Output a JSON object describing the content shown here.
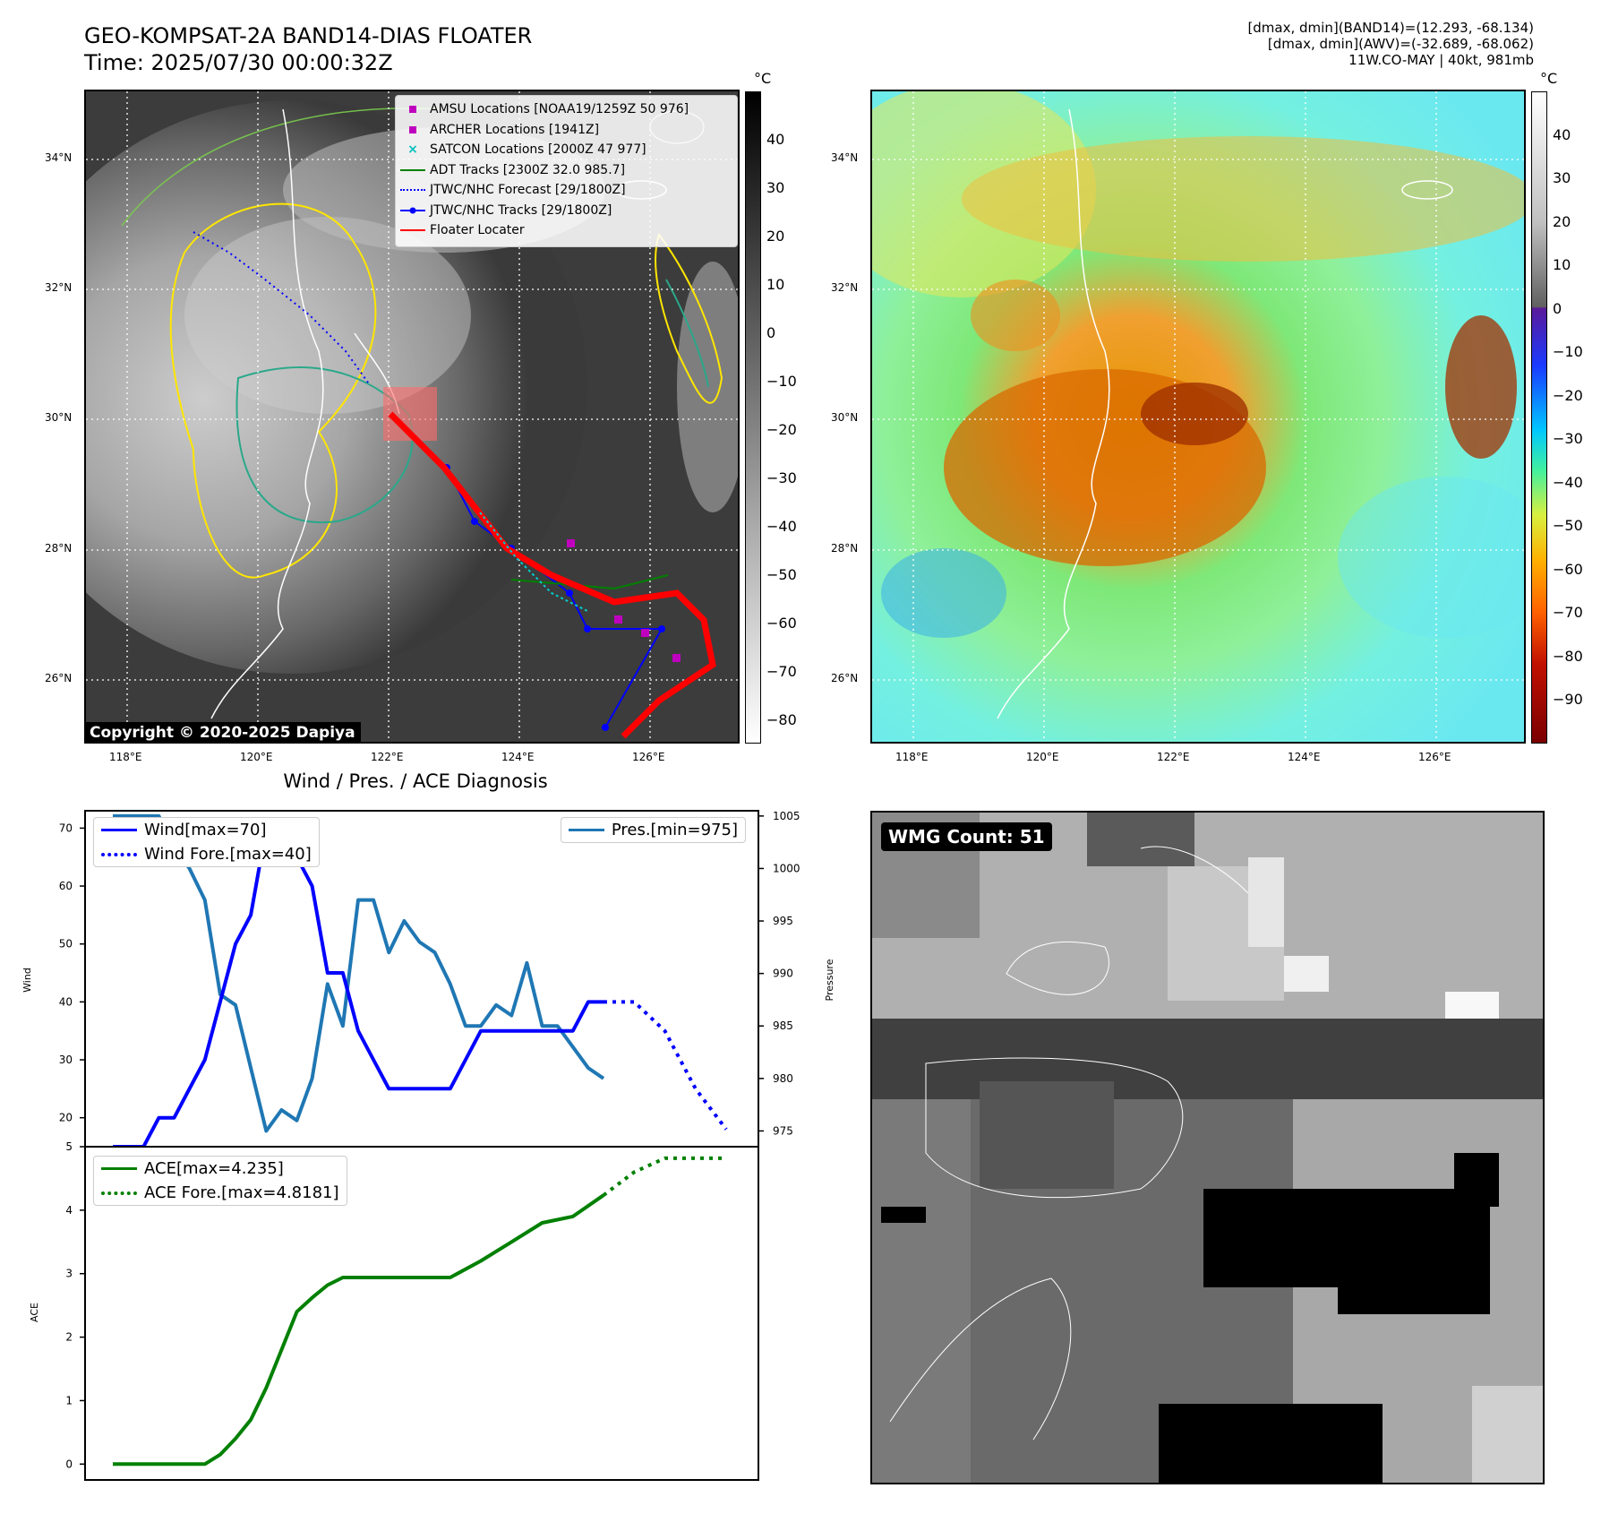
{
  "header": {
    "title": "GEO-KOMPSAT-2A BAND14-DIAS FLOATER",
    "time": "Time: 2025/07/30 00:00:32Z",
    "stats_band14": "[dmax, dmin](BAND14)=(12.293, -68.134)",
    "stats_awv": "[dmax, dmin](AWV)=(-32.689, -68.062)",
    "storm": "11W.CO-MAY | 40kt, 981mb"
  },
  "map_panels": {
    "lat_labels": [
      "34°N",
      "32°N",
      "30°N",
      "28°N",
      "26°N"
    ],
    "lon_labels": [
      "118°E",
      "120°E",
      "122°E",
      "124°E",
      "126°E"
    ],
    "copyright": "Copyright © 2020-2025 Dapiya",
    "left_colorbar": {
      "unit": "°C",
      "ticks": [
        "40",
        "30",
        "20",
        "10",
        "0",
        "−10",
        "−20",
        "−30",
        "−40",
        "−50",
        "−60",
        "−70",
        "−80"
      ]
    },
    "right_colorbar": {
      "unit": "°C",
      "ticks": [
        "40",
        "30",
        "20",
        "10",
        "0",
        "−10",
        "−20",
        "−30",
        "−40",
        "−50",
        "−60",
        "−70",
        "−80",
        "−90"
      ]
    },
    "legend": [
      {
        "label": "AMSU Locations [NOAA19/1259Z 50 976]",
        "marker": "square",
        "color": "#bf00bf"
      },
      {
        "label": "ARCHER Locations [1941Z]",
        "marker": "square",
        "color": "#bf00bf"
      },
      {
        "label": "SATCON Locations [2000Z 47 977]",
        "marker": "x",
        "color": "#00bfbf"
      },
      {
        "label": "ADT Tracks [2300Z 32.0 985.7]",
        "marker": "line",
        "color": "#008000"
      },
      {
        "label": "JTWC/NHC Forecast [29/1800Z]",
        "marker": "dotted",
        "color": "#0000ff"
      },
      {
        "label": "JTWC/NHC Tracks [29/1800Z]",
        "marker": "line-dot",
        "color": "#0000ff"
      },
      {
        "label": "Floater Locater",
        "marker": "line",
        "color": "#ff0000"
      }
    ]
  },
  "wmg": {
    "label": "WMG Count: 51"
  },
  "diagnosis": {
    "title": "Wind / Pres. / ACE Diagnosis"
  },
  "chart_data": [
    {
      "type": "line",
      "title": "Wind / Pres. / ACE Diagnosis",
      "ylabel": "Wind",
      "y2label": "Pressure",
      "ylim": [
        15,
        73
      ],
      "y2lim": [
        973.5,
        1005.5
      ],
      "xlim": [
        0,
        120
      ],
      "yticks": [
        20,
        30,
        40,
        50,
        60,
        70
      ],
      "y2ticks": [
        975,
        980,
        985,
        990,
        995,
        1000,
        1005
      ],
      "series": [
        {
          "name": "Wind[max=70]",
          "color": "#0000ff",
          "style": "solid",
          "axis": "left",
          "x": [
            0,
            6,
            9,
            12,
            15,
            18,
            21,
            24,
            27,
            30,
            33,
            36,
            39,
            42,
            45,
            48,
            51,
            54,
            57,
            60,
            63,
            66,
            69,
            72,
            75,
            78,
            81,
            84,
            87,
            90,
            93,
            96
          ],
          "y": [
            15,
            15,
            20,
            20,
            25,
            30,
            40,
            50,
            55,
            70,
            65,
            65,
            60,
            45,
            45,
            35,
            30,
            25,
            25,
            25,
            25,
            25,
            30,
            35,
            35,
            35,
            35,
            35,
            35,
            35,
            40,
            40
          ]
        },
        {
          "name": "Wind Fore.[max=40]",
          "color": "#0000ff",
          "style": "dotted",
          "axis": "left",
          "x": [
            96,
            102,
            108,
            114,
            120
          ],
          "y": [
            40,
            40,
            35,
            25,
            18
          ]
        },
        {
          "name": "Pres.[min=975]",
          "color": "#1f77b4",
          "style": "solid",
          "axis": "right",
          "x": [
            0,
            9,
            12,
            15,
            18,
            21,
            24,
            27,
            30,
            33,
            36,
            39,
            42,
            45,
            48,
            51,
            54,
            57,
            60,
            63,
            66,
            69,
            72,
            75,
            78,
            81,
            84,
            87,
            90,
            93,
            96
          ],
          "y": [
            1005,
            1005,
            1002,
            1000,
            997,
            988,
            987,
            981,
            975,
            977,
            976,
            980,
            989,
            985,
            997,
            997,
            992,
            995,
            993,
            992,
            989,
            985,
            985,
            987,
            986,
            991,
            985,
            985,
            983,
            981,
            980
          ]
        }
      ]
    },
    {
      "type": "line",
      "ylabel": "ACE",
      "ylim": [
        -0.25,
        5
      ],
      "xlim": [
        0,
        120
      ],
      "yticks": [
        0,
        1,
        2,
        3,
        4,
        5
      ],
      "series": [
        {
          "name": "ACE[max=4.235]",
          "color": "#008000",
          "style": "solid",
          "x": [
            0,
            6,
            9,
            12,
            15,
            18,
            21,
            24,
            27,
            30,
            33,
            36,
            39,
            42,
            45,
            48,
            54,
            60,
            66,
            72,
            78,
            84,
            90,
            96
          ],
          "y": [
            0,
            0,
            0,
            0,
            0,
            0,
            0.15,
            0.4,
            0.7,
            1.2,
            1.8,
            2.4,
            2.62,
            2.82,
            2.94,
            2.94,
            2.94,
            2.94,
            2.94,
            3.2,
            3.5,
            3.8,
            3.9,
            4.235
          ]
        },
        {
          "name": "ACE Fore.[max=4.8181]",
          "color": "#008000",
          "style": "dotted",
          "x": [
            96,
            102,
            108,
            114,
            120
          ],
          "y": [
            4.235,
            4.6,
            4.8181,
            4.8181,
            4.8181
          ]
        }
      ]
    }
  ]
}
